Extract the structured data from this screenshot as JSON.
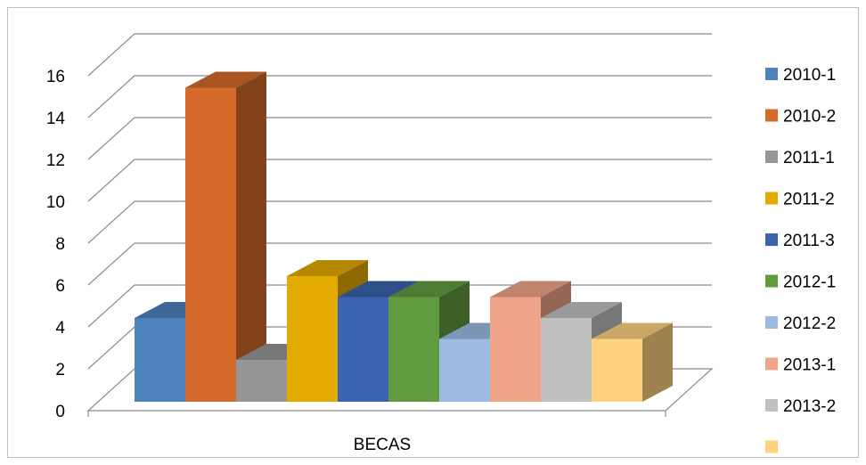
{
  "chart_data": {
    "type": "bar",
    "categories": [
      "BECAS"
    ],
    "series": [
      {
        "name": "2010-1",
        "values": [
          4
        ],
        "color": "#4f81bd"
      },
      {
        "name": "2010-2",
        "values": [
          15
        ],
        "color": "#d46b2a"
      },
      {
        "name": "2011-1",
        "values": [
          2
        ],
        "color": "#969696"
      },
      {
        "name": "2011-2",
        "values": [
          6
        ],
        "color": "#e3aa00"
      },
      {
        "name": "2011-3",
        "values": [
          5
        ],
        "color": "#3a64ad"
      },
      {
        "name": "2012-1",
        "values": [
          5
        ],
        "color": "#619b3f"
      },
      {
        "name": "2012-2",
        "values": [
          3
        ],
        "color": "#9cbbe2"
      },
      {
        "name": "2013-1",
        "values": [
          5
        ],
        "color": "#f0a58a"
      },
      {
        "name": "2013-2",
        "values": [
          4
        ],
        "color": "#c0c0c0"
      },
      {
        "name": "",
        "values": [
          3
        ],
        "color": "#ffd27f"
      }
    ],
    "ylim": [
      0,
      16
    ],
    "yticks": [
      0,
      2,
      4,
      6,
      8,
      10,
      12,
      14,
      16
    ],
    "grid": true,
    "legend": "right",
    "title": "",
    "xlabel": "",
    "ylabel": ""
  }
}
